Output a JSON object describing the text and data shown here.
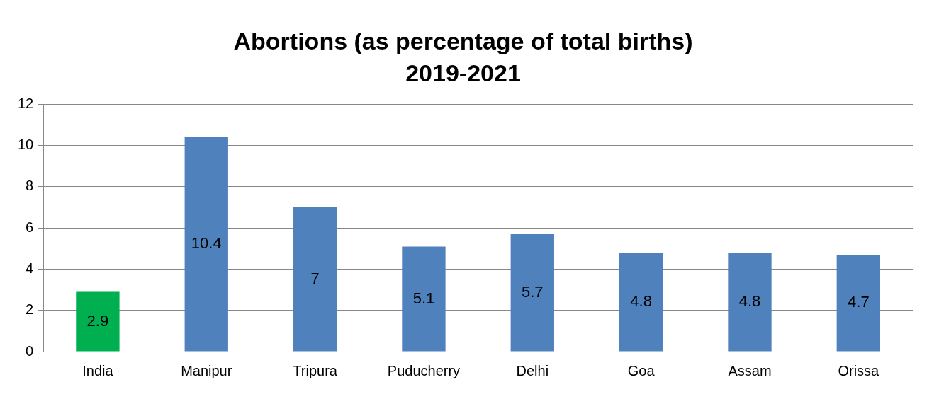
{
  "chart_data": {
    "type": "bar",
    "title": "Abortions (as percentage of total births)\n2019-2021",
    "categories": [
      "India",
      "Manipur",
      "Tripura",
      "Puducherry",
      "Delhi",
      "Goa",
      "Assam",
      "Orissa"
    ],
    "values": [
      2.9,
      10.4,
      7,
      5.1,
      5.7,
      4.8,
      4.8,
      4.7
    ],
    "colors": [
      "#00b050",
      "#4f81bd",
      "#4f81bd",
      "#4f81bd",
      "#4f81bd",
      "#4f81bd",
      "#4f81bd",
      "#4f81bd"
    ],
    "ylim": [
      0,
      12
    ],
    "yticks": [
      0,
      2,
      4,
      6,
      8,
      10,
      12
    ],
    "grid": "y",
    "data_labels": true,
    "legend": false
  }
}
